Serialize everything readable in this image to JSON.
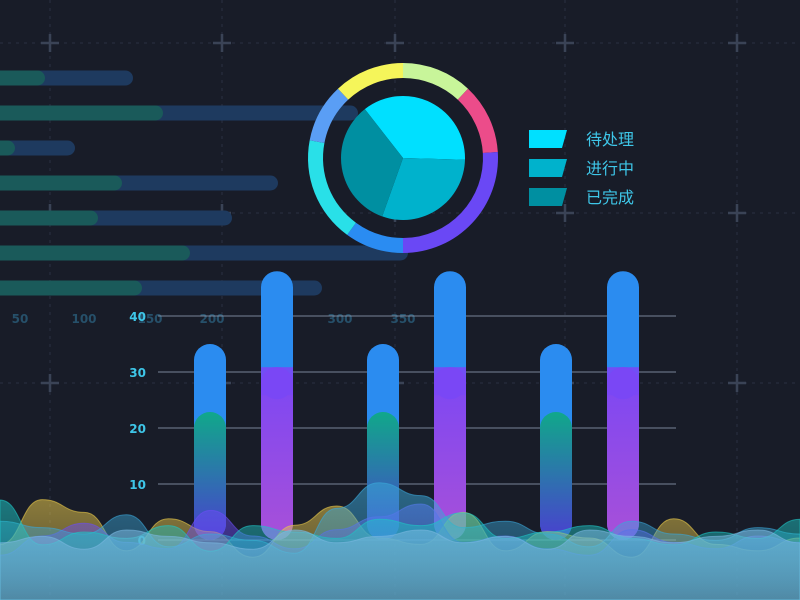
{
  "colors": {
    "background": "#181c28",
    "grid_line": "#2a3142",
    "grid_plus": "#3a4356",
    "hbar_track": "#1e3a5f",
    "hbar_fill": "#1a5a5a",
    "bar_blue": "#2b8cf0",
    "bar_purple": "#7a47f5",
    "bar_green": "#12a08c",
    "axis_text": "#3ec6e8",
    "faded_axis_text": "#26506a",
    "pie_light": "#00e0ff",
    "pie_mid": "#00b2cc",
    "pie_dark": "#008fa1"
  },
  "chart_data": [
    {
      "type": "bar",
      "orientation": "horizontal",
      "x_tick_labels": [
        "50",
        "100",
        "150",
        "200",
        "300",
        "350"
      ],
      "bars": [
        {
          "track": 133,
          "fill": 45
        },
        {
          "track": 358,
          "fill": 163
        },
        {
          "track": 75,
          "fill": 15
        },
        {
          "track": 278,
          "fill": 122
        },
        {
          "track": 232,
          "fill": 98
        },
        {
          "track": 408,
          "fill": 190
        },
        {
          "track": 322,
          "fill": 142
        }
      ]
    },
    {
      "type": "pie",
      "legend_position": "right",
      "slices": [
        {
          "label": "待处理",
          "value": 36
        },
        {
          "label": "进行中",
          "value": 30
        },
        {
          "label": "已完成",
          "value": 34
        }
      ],
      "ring_segments": [
        {
          "color": "#c8f59a",
          "value": 12
        },
        {
          "color": "#ec4c8a",
          "value": 12
        },
        {
          "color": "#6a48f5",
          "value": 26
        },
        {
          "color": "#2a8cf2",
          "value": 10
        },
        {
          "color": "#29e0e8",
          "value": 18
        },
        {
          "color": "#5a9ef5",
          "value": 10
        },
        {
          "color": "#f5f55a",
          "value": 12
        }
      ]
    },
    {
      "type": "bar",
      "y_ticks": [
        "0",
        "10",
        "20",
        "30",
        "40"
      ],
      "ylim": [
        0,
        40
      ],
      "grid": true,
      "bars": [
        {
          "total": 35,
          "top_segment": 20,
          "style": "green"
        },
        {
          "total": 48,
          "top_segment": 28,
          "style": "purple"
        },
        {
          "total": 35,
          "top_segment": 20,
          "style": "green"
        },
        {
          "total": 48,
          "top_segment": 28,
          "style": "purple"
        },
        {
          "total": 35,
          "top_segment": 20,
          "style": "green"
        },
        {
          "total": 48,
          "top_segment": 28,
          "style": "purple"
        }
      ]
    },
    {
      "type": "area",
      "series": [
        {
          "color": "#e8c84a",
          "values": [
            8,
            22,
            18,
            6,
            16,
            12,
            4,
            14,
            20,
            10,
            8,
            18,
            6,
            12,
            10,
            4,
            16,
            8,
            6,
            10
          ]
        },
        {
          "color": "#6a4cf5",
          "values": [
            4,
            10,
            14,
            8,
            6,
            18,
            10,
            6,
            12,
            16,
            20,
            8,
            10,
            6,
            4,
            12,
            8,
            6,
            10,
            8
          ]
        },
        {
          "color": "#3aa7d8",
          "values": [
            14,
            12,
            10,
            16,
            6,
            10,
            8,
            4,
            18,
            26,
            22,
            12,
            14,
            10,
            6,
            14,
            10,
            8,
            12,
            10
          ]
        },
        {
          "color": "#1ec4c4",
          "values": [
            20,
            6,
            10,
            8,
            12,
            4,
            12,
            10,
            8,
            14,
            12,
            16,
            8,
            10,
            12,
            8,
            6,
            10,
            8,
            14
          ]
        },
        {
          "color": "#7ab8e0",
          "values": [
            6,
            8,
            4,
            10,
            8,
            6,
            4,
            10,
            6,
            8,
            10,
            6,
            8,
            4,
            10,
            8,
            6,
            8,
            10,
            6
          ]
        }
      ]
    }
  ]
}
